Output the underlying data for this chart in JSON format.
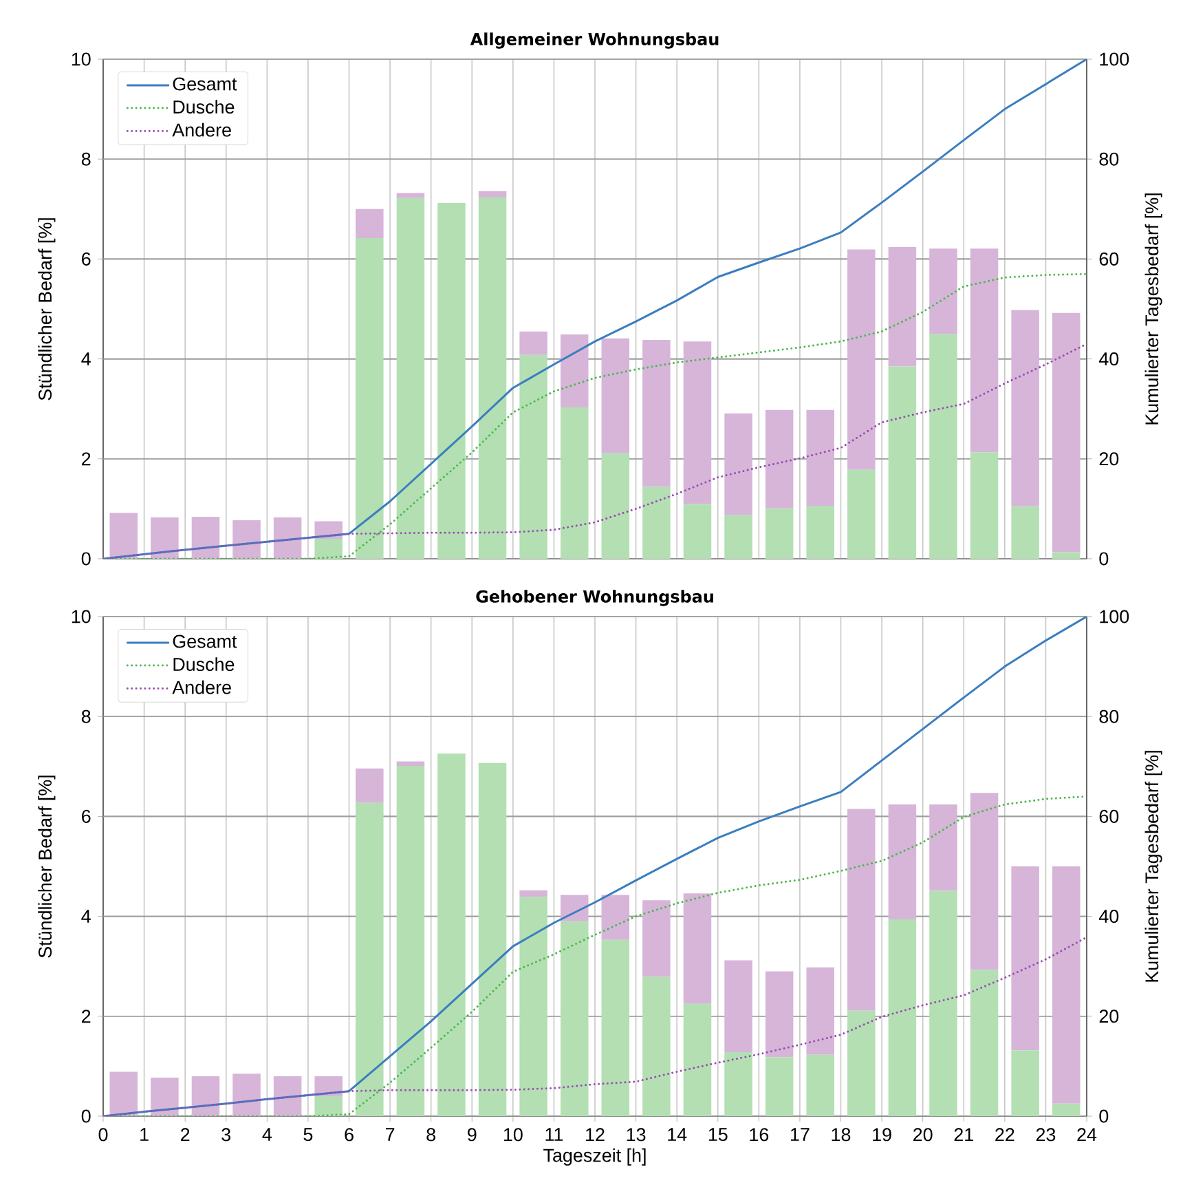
{
  "chart_data": [
    {
      "type": "bar",
      "title": "Allgemeiner Wohnungsbau",
      "ylabel": "Stündlicher Bedarf [%]",
      "y2label": "Kumulierter Tagesbedarf [%]",
      "stacked": true,
      "xlim": [
        0,
        24
      ],
      "xticks": [
        0,
        1,
        2,
        3,
        4,
        5,
        6,
        7,
        8,
        9,
        10,
        11,
        12,
        13,
        14,
        15,
        16,
        17,
        18,
        19,
        20,
        21,
        22,
        23,
        24
      ],
      "ylim": [
        0,
        10
      ],
      "yticks": [
        0,
        2,
        4,
        6,
        8,
        10
      ],
      "y2lim": [
        0,
        100
      ],
      "y2ticks": [
        0,
        20,
        40,
        60,
        80,
        100
      ],
      "grid": true,
      "legend": "top left",
      "tick_labels": "y",
      "marker": "none",
      "x": [
        0.5,
        1.5,
        2.5,
        3.5,
        4.5,
        5.5,
        6.5,
        7.5,
        8.5,
        9.5,
        10.5,
        11.5,
        12.5,
        13.5,
        14.5,
        15.5,
        16.5,
        17.5,
        18.5,
        19.5,
        20.5,
        21.5,
        22.5,
        23.5
      ],
      "series": [
        {
          "color": "#b3dfb3",
          "values": [
            0,
            0,
            0,
            0,
            0,
            0.4,
            6.42,
            7.22,
            7.12,
            7.23,
            4.08,
            3.03,
            2.11,
            1.44,
            1.1,
            0.87,
            1.01,
            1.06,
            1.78,
            3.85,
            4.5,
            2.13,
            1.05,
            0.13
          ]
        },
        {
          "color": "#d6b5d9",
          "values": [
            0.92,
            0.83,
            0.84,
            0.77,
            0.83,
            0.35,
            0.58,
            0.1,
            0,
            0.13,
            0.47,
            1.46,
            2.3,
            2.94,
            3.25,
            2.04,
            1.97,
            1.92,
            4.41,
            2.39,
            1.71,
            4.08,
            3.93,
            4.79
          ]
        },
        {
          "type": "line",
          "name": "Gesamt",
          "axis": "y2",
          "color": "#3a7ebf",
          "line_style": "solid",
          "x": [
            0,
            1,
            2,
            3,
            4,
            5,
            6,
            7,
            8,
            9,
            10,
            11,
            12,
            13,
            14,
            15,
            16,
            17,
            18,
            19,
            20,
            21,
            22,
            23,
            24
          ],
          "values": [
            0,
            0.9,
            1.8,
            2.6,
            3.4,
            4.2,
            5.0,
            11.5,
            19.0,
            26.5,
            34.2,
            38.9,
            43.5,
            47.5,
            51.7,
            56.4,
            59.3,
            62.1,
            65.3,
            71.3,
            77.5,
            83.8,
            90.0,
            95.0,
            100
          ]
        },
        {
          "type": "line",
          "name": "Dusche",
          "axis": "y2",
          "color": "#4cb84c",
          "line_style": "dotted",
          "x": [
            0,
            1,
            2,
            3,
            4,
            5,
            6,
            7,
            8,
            9,
            10,
            11,
            12,
            13,
            14,
            15,
            16,
            17,
            18,
            19,
            20,
            21,
            22,
            23,
            24
          ],
          "values": [
            0,
            0,
            0,
            0,
            0,
            0,
            0.5,
            6.9,
            14.1,
            21.3,
            29.3,
            33.5,
            36.2,
            37.9,
            39.3,
            40.3,
            41.3,
            42.3,
            43.5,
            45.5,
            49.4,
            54.5,
            56.3,
            56.8,
            57.0
          ]
        },
        {
          "type": "line",
          "name": "Andere",
          "axis": "y2",
          "color": "#9a4db0",
          "line_style": "dotted",
          "x": [
            0,
            1,
            2,
            3,
            4,
            5,
            6,
            7,
            8,
            9,
            10,
            11,
            12,
            13,
            14,
            15,
            16,
            17,
            18,
            19,
            20,
            21,
            22,
            23,
            24
          ],
          "values": [
            0,
            0.9,
            1.8,
            2.6,
            3.4,
            4.2,
            5.0,
            5.1,
            5.2,
            5.2,
            5.3,
            5.8,
            7.3,
            10.0,
            13.0,
            16.3,
            18.3,
            20.1,
            22.2,
            27.3,
            29.3,
            31.0,
            35.1,
            38.9,
            43.0
          ]
        }
      ]
    },
    {
      "type": "bar",
      "title": "Gehobener Wohnungsbau",
      "xlabel": "Tageszeit [h]",
      "ylabel": "Stündlicher Bedarf [%]",
      "y2label": "Kumulierter Tagesbedarf [%]",
      "stacked": true,
      "xlim": [
        0,
        24
      ],
      "xticks": [
        0,
        1,
        2,
        3,
        4,
        5,
        6,
        7,
        8,
        9,
        10,
        11,
        12,
        13,
        14,
        15,
        16,
        17,
        18,
        19,
        20,
        21,
        22,
        23,
        24
      ],
      "ylim": [
        0,
        10
      ],
      "yticks": [
        0,
        2,
        4,
        6,
        8,
        10
      ],
      "y2lim": [
        0,
        100
      ],
      "y2ticks": [
        0,
        20,
        40,
        60,
        80,
        100
      ],
      "grid": true,
      "legend": "top left",
      "marker": "none",
      "x": [
        0.5,
        1.5,
        2.5,
        3.5,
        4.5,
        5.5,
        6.5,
        7.5,
        8.5,
        9.5,
        10.5,
        11.5,
        12.5,
        13.5,
        14.5,
        15.5,
        16.5,
        17.5,
        18.5,
        19.5,
        20.5,
        21.5,
        22.5,
        23.5
      ],
      "series": [
        {
          "color": "#b3dfb3",
          "values": [
            0,
            0,
            0,
            0,
            0,
            0.4,
            6.27,
            7.01,
            7.26,
            7.07,
            4.39,
            3.9,
            3.53,
            2.79,
            2.25,
            1.28,
            1.18,
            1.23,
            2.11,
            3.94,
            4.51,
            2.93,
            1.32,
            0.25
          ]
        },
        {
          "color": "#d6b5d9",
          "values": [
            0.89,
            0.77,
            0.8,
            0.85,
            0.8,
            0.4,
            0.69,
            0.09,
            0,
            0,
            0.13,
            0.53,
            0.9,
            1.53,
            2.21,
            1.84,
            1.72,
            1.75,
            4.04,
            2.3,
            1.73,
            3.54,
            3.68,
            4.75
          ]
        },
        {
          "type": "line",
          "name": "Gesamt",
          "axis": "y2",
          "color": "#3a7ebf",
          "line_style": "solid",
          "x": [
            0,
            1,
            2,
            3,
            4,
            5,
            6,
            7,
            8,
            9,
            10,
            11,
            12,
            13,
            14,
            15,
            16,
            17,
            18,
            19,
            20,
            21,
            22,
            23,
            24
          ],
          "values": [
            0,
            0.9,
            1.7,
            2.5,
            3.4,
            4.2,
            5.0,
            12.0,
            19.0,
            26.5,
            34.0,
            38.7,
            42.8,
            47.2,
            51.5,
            55.7,
            59.0,
            62.0,
            64.9,
            71.2,
            77.5,
            83.8,
            90.0,
            95.2,
            100
          ]
        },
        {
          "type": "line",
          "name": "Dusche",
          "axis": "y2",
          "color": "#4cb84c",
          "line_style": "dotted",
          "x": [
            0,
            1,
            2,
            3,
            4,
            5,
            6,
            7,
            8,
            9,
            10,
            11,
            12,
            13,
            14,
            15,
            16,
            17,
            18,
            19,
            20,
            21,
            22,
            23,
            24
          ],
          "values": [
            0,
            0,
            0,
            0,
            0,
            0,
            0.4,
            6.7,
            13.7,
            20.9,
            28.9,
            32.4,
            36.3,
            40.0,
            42.6,
            44.7,
            46.2,
            47.3,
            49.1,
            51.1,
            54.8,
            59.9,
            62.4,
            63.5,
            64.0
          ]
        },
        {
          "type": "line",
          "name": "Andere",
          "axis": "y2",
          "color": "#9a4db0",
          "line_style": "dotted",
          "x": [
            0,
            1,
            2,
            3,
            4,
            5,
            6,
            7,
            8,
            9,
            10,
            11,
            12,
            13,
            14,
            15,
            16,
            17,
            18,
            19,
            20,
            21,
            22,
            23,
            24
          ],
          "values": [
            0,
            0.9,
            1.7,
            2.5,
            3.4,
            4.2,
            5.0,
            5.2,
            5.2,
            5.2,
            5.3,
            5.6,
            6.4,
            6.9,
            8.9,
            10.7,
            12.4,
            14.3,
            16.3,
            19.9,
            22.2,
            24.2,
            27.7,
            31.4,
            35.8
          ]
        }
      ]
    }
  ]
}
